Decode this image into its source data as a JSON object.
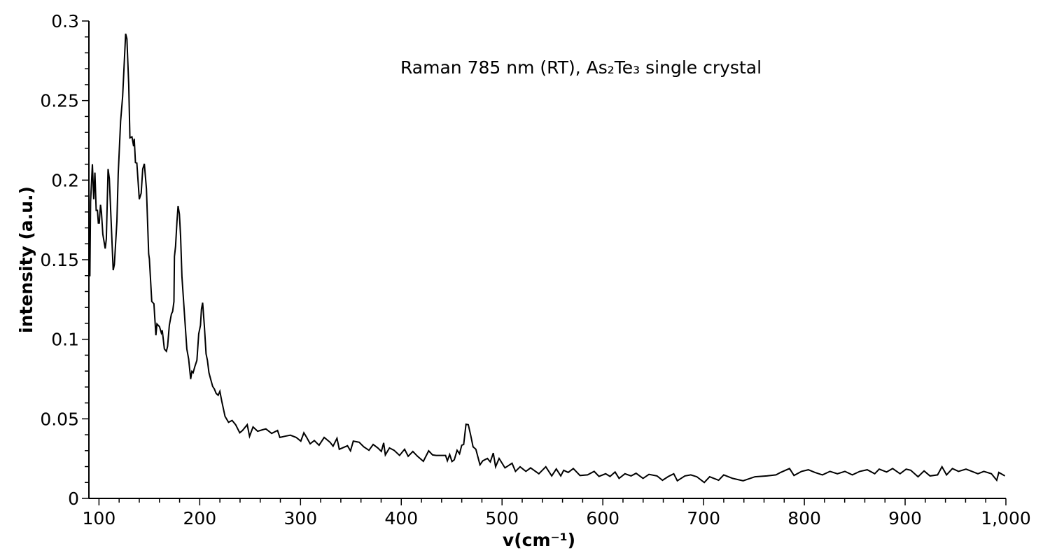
{
  "chart_data": {
    "type": "line",
    "title": "Raman 785 nm (RT), As₂Te₃ single crystal",
    "xlabel": "v(cm⁻¹)",
    "ylabel": "intensity (a.u.)",
    "xlim": [
      90,
      1000
    ],
    "ylim": [
      0,
      0.3
    ],
    "x_ticks": [
      100,
      200,
      300,
      400,
      500,
      600,
      700,
      800,
      900,
      1000
    ],
    "x_tick_labels": [
      "100",
      "200",
      "300",
      "400",
      "500",
      "600",
      "700",
      "800",
      "900",
      "1,000"
    ],
    "x_minor_step": 20,
    "y_ticks": [
      0,
      0.05,
      0.1,
      0.15,
      0.2,
      0.25,
      0.3
    ],
    "y_tick_labels": [
      "0",
      "0.05",
      "0.1",
      "0.15",
      "0.2",
      "0.25",
      "0.3"
    ],
    "y_minor_step": 0.01,
    "grid": false,
    "line_color": "#000000",
    "series": [
      {
        "points": [
          [
            90.5,
            0.14
          ],
          [
            91,
            0.14
          ],
          [
            91.7,
            0.1865
          ],
          [
            93.5,
            0.21
          ],
          [
            94.8,
            0.188
          ],
          [
            96,
            0.2047
          ],
          [
            97.2,
            0.181
          ],
          [
            98.5,
            0.181
          ],
          [
            99.4,
            0.173
          ],
          [
            100.3,
            0.173
          ],
          [
            101.5,
            0.1845
          ],
          [
            102.4,
            0.18
          ],
          [
            103.8,
            0.166
          ],
          [
            106.2,
            0.157
          ],
          [
            107.3,
            0.163
          ],
          [
            109,
            0.207
          ],
          [
            110.3,
            0.201
          ],
          [
            114.1,
            0.1434
          ],
          [
            115.3,
            0.147
          ],
          [
            117.8,
            0.174
          ],
          [
            119.1,
            0.204
          ],
          [
            121.5,
            0.237
          ],
          [
            123.5,
            0.2526
          ],
          [
            126.5,
            0.292
          ],
          [
            127.7,
            0.2888
          ],
          [
            129.5,
            0.26
          ],
          [
            130.7,
            0.2266
          ],
          [
            132.7,
            0.2272
          ],
          [
            134.4,
            0.2213
          ],
          [
            135,
            0.226
          ],
          [
            136.2,
            0.211
          ],
          [
            137.6,
            0.2107
          ],
          [
            140,
            0.188
          ],
          [
            141.9,
            0.1918
          ],
          [
            143.4,
            0.207
          ],
          [
            145,
            0.2103
          ],
          [
            147.1,
            0.1945
          ],
          [
            149.3,
            0.1536
          ],
          [
            150,
            0.1505
          ],
          [
            152.4,
            0.1238
          ],
          [
            154.5,
            0.1223
          ],
          [
            156.5,
            0.1025
          ],
          [
            157.5,
            0.1096
          ],
          [
            160,
            0.108
          ],
          [
            161.9,
            0.104
          ],
          [
            162.8,
            0.1056
          ],
          [
            164.9,
            0.0939
          ],
          [
            166.9,
            0.0924
          ],
          [
            168.1,
            0.0955
          ],
          [
            169.8,
            0.1088
          ],
          [
            171.9,
            0.1159
          ],
          [
            173.1,
            0.1174
          ],
          [
            174.4,
            0.1237
          ],
          [
            174.9,
            0.152
          ],
          [
            176,
            0.1584
          ],
          [
            177.4,
            0.174
          ],
          [
            178.5,
            0.1838
          ],
          [
            179.8,
            0.1787
          ],
          [
            181,
            0.1646
          ],
          [
            182.3,
            0.1395
          ],
          [
            184.8,
            0.1159
          ],
          [
            187.2,
            0.0939
          ],
          [
            189,
            0.0876
          ],
          [
            191,
            0.075
          ],
          [
            192.2,
            0.0798
          ],
          [
            193.4,
            0.079
          ],
          [
            195.2,
            0.0829
          ],
          [
            197.2,
            0.0868
          ],
          [
            199,
            0.1034
          ],
          [
            200.7,
            0.1088
          ],
          [
            201.7,
            0.119
          ],
          [
            202.9,
            0.123
          ],
          [
            204.6,
            0.108
          ],
          [
            206.3,
            0.0908
          ],
          [
            207.6,
            0.0868
          ],
          [
            209.1,
            0.079
          ],
          [
            210.8,
            0.075
          ],
          [
            212.8,
            0.0704
          ],
          [
            214.5,
            0.0688
          ],
          [
            216.3,
            0.066
          ],
          [
            218.3,
            0.0648
          ],
          [
            220,
            0.0673
          ],
          [
            221.9,
            0.0609
          ],
          [
            225.1,
            0.0515
          ],
          [
            228.6,
            0.0478
          ],
          [
            232.1,
            0.049
          ],
          [
            235.6,
            0.0463
          ],
          [
            239.7,
            0.0412
          ],
          [
            242.5,
            0.0427
          ],
          [
            247.1,
            0.0463
          ],
          [
            249.4,
            0.039
          ],
          [
            252.9,
            0.0449
          ],
          [
            257.5,
            0.0422
          ],
          [
            262.2,
            0.0431
          ],
          [
            265.6,
            0.0437
          ],
          [
            271.4,
            0.0408
          ],
          [
            277.2,
            0.0427
          ],
          [
            279.5,
            0.0383
          ],
          [
            284.2,
            0.039
          ],
          [
            289.9,
            0.0397
          ],
          [
            295.7,
            0.0383
          ],
          [
            300.3,
            0.036
          ],
          [
            303.3,
            0.0412
          ],
          [
            306.1,
            0.0383
          ],
          [
            309.6,
            0.0343
          ],
          [
            313.7,
            0.0364
          ],
          [
            318.4,
            0.0334
          ],
          [
            323.5,
            0.0383
          ],
          [
            329.3,
            0.0353
          ],
          [
            332.3,
            0.0328
          ],
          [
            336.2,
            0.0378
          ],
          [
            338.5,
            0.0309
          ],
          [
            346.6,
            0.0331
          ],
          [
            349.6,
            0.0299
          ],
          [
            352.4,
            0.036
          ],
          [
            358.2,
            0.0353
          ],
          [
            362.8,
            0.0324
          ],
          [
            367.9,
            0.0302
          ],
          [
            372.1,
            0.0339
          ],
          [
            376.7,
            0.0317
          ],
          [
            380.2,
            0.0295
          ],
          [
            382.5,
            0.0349
          ],
          [
            384.2,
            0.0273
          ],
          [
            388.3,
            0.0317
          ],
          [
            392.9,
            0.0302
          ],
          [
            398.3,
            0.027
          ],
          [
            403.3,
            0.0309
          ],
          [
            406.8,
            0.0265
          ],
          [
            411.5,
            0.0295
          ],
          [
            416.1,
            0.0265
          ],
          [
            421.9,
            0.0233
          ],
          [
            427.2,
            0.0299
          ],
          [
            431.1,
            0.0273
          ],
          [
            434.6,
            0.027
          ],
          [
            443.9,
            0.027
          ],
          [
            445.7,
            0.0236
          ],
          [
            448,
            0.0276
          ],
          [
            450.3,
            0.0232
          ],
          [
            452.6,
            0.0243
          ],
          [
            455.4,
            0.0302
          ],
          [
            457.8,
            0.028
          ],
          [
            460,
            0.0334
          ],
          [
            461.9,
            0.0339
          ],
          [
            464.2,
            0.0466
          ],
          [
            466.5,
            0.0463
          ],
          [
            468.9,
            0.0397
          ],
          [
            471.2,
            0.0324
          ],
          [
            474,
            0.0309
          ],
          [
            478.1,
            0.0211
          ],
          [
            480.9,
            0.0236
          ],
          [
            485.5,
            0.0251
          ],
          [
            488.3,
            0.0229
          ],
          [
            491.3,
            0.0285
          ],
          [
            493.6,
            0.0199
          ],
          [
            497.1,
            0.0251
          ],
          [
            502.9,
            0.0192
          ],
          [
            509.9,
            0.0221
          ],
          [
            513.3,
            0.017
          ],
          [
            517.9,
            0.0199
          ],
          [
            523.7,
            0.017
          ],
          [
            528.3,
            0.0192
          ],
          [
            536.5,
            0.0155
          ],
          [
            543.4,
            0.0199
          ],
          [
            549.3,
            0.0141
          ],
          [
            553.8,
            0.0185
          ],
          [
            558.3,
            0.0141
          ],
          [
            561.2,
            0.0177
          ],
          [
            565.6,
            0.0163
          ],
          [
            570.7,
            0.0188
          ],
          [
            577.4,
            0.0144
          ],
          [
            584.9,
            0.0148
          ],
          [
            591.4,
            0.017
          ],
          [
            596.2,
            0.0138
          ],
          [
            602.8,
            0.0155
          ],
          [
            607.2,
            0.0138
          ],
          [
            612.2,
            0.0166
          ],
          [
            616.1,
            0.0126
          ],
          [
            622,
            0.0155
          ],
          [
            628,
            0.0141
          ],
          [
            633,
            0.0158
          ],
          [
            639.9,
            0.0126
          ],
          [
            645.8,
            0.0151
          ],
          [
            653.8,
            0.0141
          ],
          [
            659.2,
            0.0114
          ],
          [
            665.1,
            0.0138
          ],
          [
            670.4,
            0.0155
          ],
          [
            673.9,
            0.0111
          ],
          [
            681.4,
            0.0141
          ],
          [
            687.3,
            0.0148
          ],
          [
            693.3,
            0.0136
          ],
          [
            700.7,
            0.01
          ],
          [
            706,
            0.0136
          ],
          [
            714.9,
            0.0114
          ],
          [
            720,
            0.0148
          ],
          [
            728.8,
            0.0126
          ],
          [
            739.2,
            0.0111
          ],
          [
            751,
            0.0136
          ],
          [
            762.8,
            0.0141
          ],
          [
            771.9,
            0.0148
          ],
          [
            776.4,
            0.0163
          ],
          [
            785.3,
            0.0188
          ],
          [
            789.7,
            0.0144
          ],
          [
            797.2,
            0.017
          ],
          [
            804,
            0.018
          ],
          [
            810.5,
            0.0163
          ],
          [
            817.9,
            0.0148
          ],
          [
            825.4,
            0.017
          ],
          [
            832.8,
            0.0155
          ],
          [
            840.2,
            0.017
          ],
          [
            847.6,
            0.0148
          ],
          [
            855,
            0.017
          ],
          [
            862.4,
            0.018
          ],
          [
            869.8,
            0.0155
          ],
          [
            874.3,
            0.0184
          ],
          [
            881.6,
            0.0166
          ],
          [
            887.6,
            0.0188
          ],
          [
            895,
            0.0155
          ],
          [
            901,
            0.0184
          ],
          [
            905.5,
            0.0177
          ],
          [
            912.8,
            0.0136
          ],
          [
            918.8,
            0.0173
          ],
          [
            924.7,
            0.0141
          ],
          [
            932.2,
            0.0148
          ],
          [
            936.6,
            0.0199
          ],
          [
            941.1,
            0.0148
          ],
          [
            946.9,
            0.0188
          ],
          [
            953,
            0.017
          ],
          [
            960.4,
            0.0184
          ],
          [
            966.3,
            0.017
          ],
          [
            972.2,
            0.0155
          ],
          [
            978.1,
            0.017
          ],
          [
            985.6,
            0.0155
          ],
          [
            990.9,
            0.0114
          ],
          [
            993,
            0.0163
          ],
          [
            999,
            0.0141
          ]
        ]
      }
    ]
  }
}
